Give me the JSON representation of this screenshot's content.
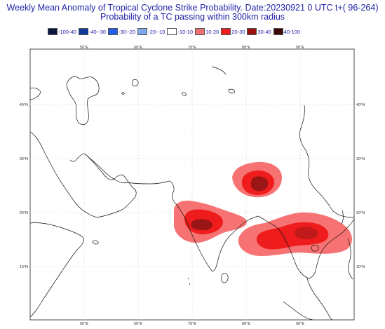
{
  "header": {
    "title_line1": "Weekly Mean Anomaly of Tropical Cyclone Strike Probability. Date:20230921  0 UTC t+( 96-264)",
    "title_line2": "Probability of a TC passing within  300km radius"
  },
  "legend": {
    "items": [
      {
        "label": "-100-40",
        "color": "#0a1640"
      },
      {
        "label": "-40--30",
        "color": "#103a9a"
      },
      {
        "label": "-30--20",
        "color": "#1f5ee8"
      },
      {
        "label": "-20--10",
        "color": "#7fa6ec"
      },
      {
        "label": "-10-10",
        "color": "#ffffff"
      },
      {
        "label": "10-20",
        "color": "#f07070"
      },
      {
        "label": "20-30",
        "color": "#ee1c1c"
      },
      {
        "label": "30-40",
        "color": "#9a0f0f"
      },
      {
        "label": "40-100",
        "color": "#3a0606"
      }
    ]
  },
  "map": {
    "lon_labels": [
      "50°E",
      "60°E",
      "70°E",
      "80°E",
      "90°E"
    ],
    "lat_labels": [
      "40°N",
      "30°N",
      "20°N",
      "10°N"
    ],
    "lon_ticks": [
      50,
      60,
      70,
      80,
      90
    ],
    "lat_ticks": [
      40,
      30,
      20,
      10
    ],
    "lon_range": [
      40,
      100
    ],
    "lat_range": [
      1,
      38
    ]
  }
}
